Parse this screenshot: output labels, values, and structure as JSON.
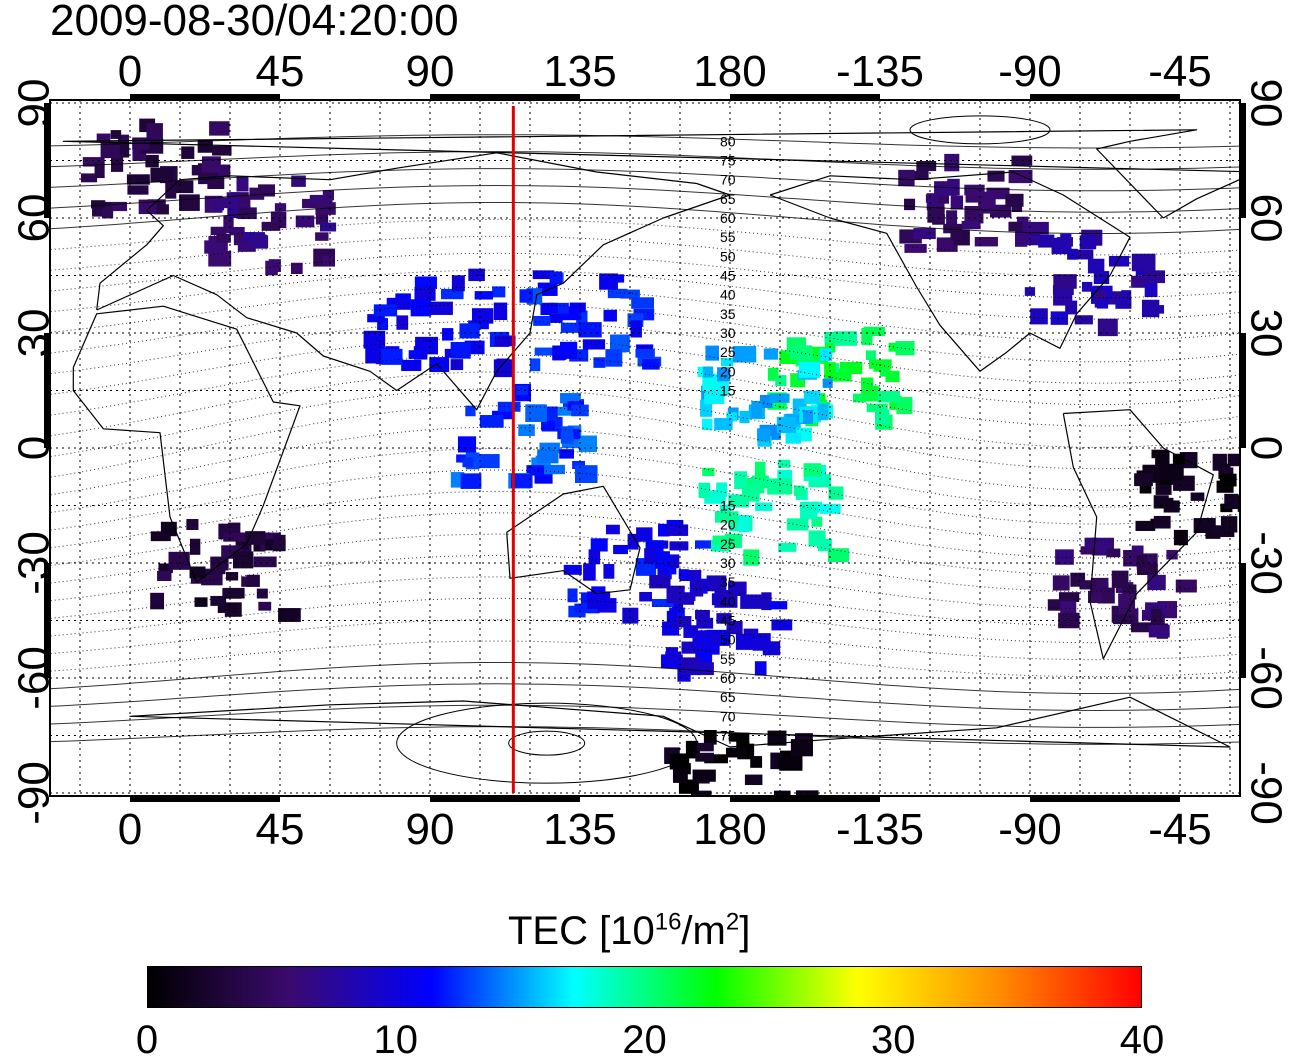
{
  "title": "2009-08-30/04:20:00",
  "map": {
    "lon_ticks": [
      "0",
      "45",
      "90",
      "135",
      "180",
      "-135",
      "-90",
      "-45"
    ],
    "lon_tick_values": [
      0,
      45,
      90,
      135,
      180,
      225,
      270,
      315
    ],
    "lat_ticks": [
      "90",
      "60",
      "30",
      "0",
      "-30",
      "-60",
      "-90"
    ],
    "lat_tick_values": [
      90,
      60,
      30,
      0,
      -30,
      -60,
      -90
    ],
    "terminator_longitude": 115,
    "terminator_color": "#e00000",
    "contour_labels": [
      "80",
      "75",
      "70",
      "65",
      "60",
      "55",
      "50",
      "45",
      "40",
      "35",
      "30",
      "25",
      "20",
      "15",
      "15",
      "20",
      "25",
      "30",
      "35",
      "40",
      "45",
      "50",
      "55",
      "60",
      "65",
      "70",
      "75"
    ],
    "tec_patches": [
      {
        "lon": 5,
        "lat": 75,
        "tec": 4
      },
      {
        "lon": 40,
        "lat": 60,
        "tec": 6
      },
      {
        "lon": 90,
        "lat": 35,
        "tec": 11
      },
      {
        "lon": 135,
        "lat": 35,
        "tec": 12
      },
      {
        "lon": 115,
        "lat": 5,
        "tec": 13
      },
      {
        "lon": 150,
        "lat": -30,
        "tec": 11
      },
      {
        "lon": 175,
        "lat": -45,
        "tec": 10
      },
      {
        "lon": 210,
        "lat": 20,
        "tec": 21
      },
      {
        "lon": 190,
        "lat": 15,
        "tec": 16
      },
      {
        "lon": 190,
        "lat": -15,
        "tec": 19
      },
      {
        "lon": 285,
        "lat": 45,
        "tec": 8
      },
      {
        "lon": 250,
        "lat": 65,
        "tec": 5
      },
      {
        "lon": 320,
        "lat": -10,
        "tec": 1
      },
      {
        "lon": 295,
        "lat": -35,
        "tec": 5
      },
      {
        "lon": 25,
        "lat": -30,
        "tec": 3
      },
      {
        "lon": 180,
        "lat": -85,
        "tec": 1
      }
    ]
  },
  "colorbar": {
    "title_text": "TEC  [10",
    "title_sup1": "16",
    "title_mid": "/m",
    "title_sup2": "2",
    "title_end": "]",
    "ticks": [
      "0",
      "10",
      "20",
      "30",
      "40"
    ],
    "stops": [
      "#000000",
      "#3b0a6e",
      "#0000ff",
      "#00ffff",
      "#00ff00",
      "#ffff00",
      "#ff8c00",
      "#ff0000"
    ]
  }
}
